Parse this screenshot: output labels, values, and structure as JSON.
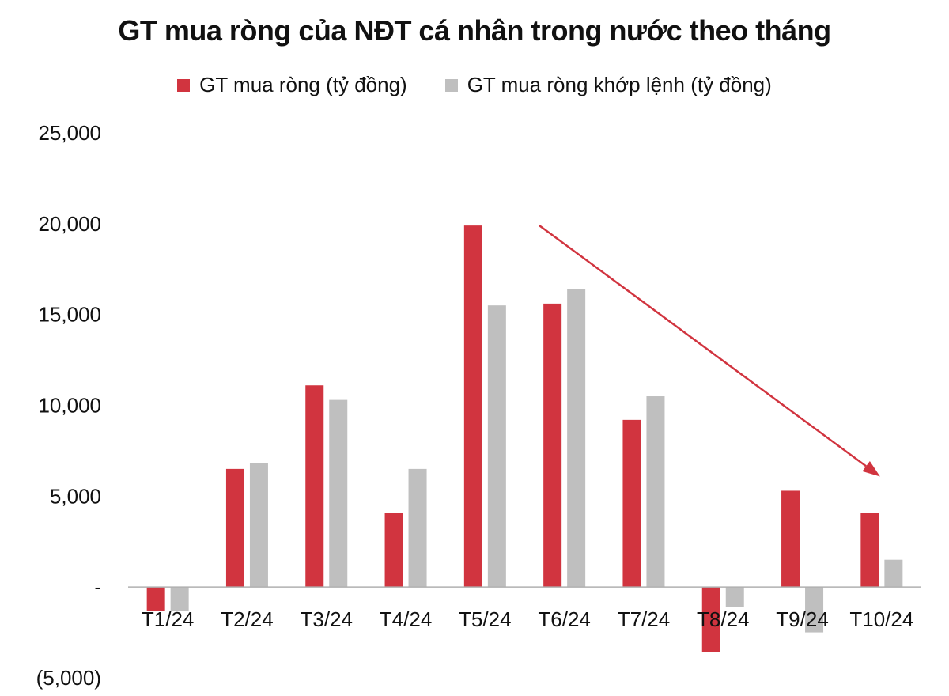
{
  "chart_data": {
    "type": "bar",
    "title": "GT mua ròng của NĐT cá nhân trong nước theo tháng",
    "categories": [
      "T1/24",
      "T2/24",
      "T3/24",
      "T4/24",
      "T5/24",
      "T6/24",
      "T7/24",
      "T8/24",
      "T9/24",
      "T10/24"
    ],
    "series": [
      {
        "name": "GT mua ròng (tỷ đồng)",
        "color": "#d1343f",
        "values": [
          -1300,
          6500,
          11100,
          4100,
          19900,
          15600,
          9200,
          -3600,
          5300,
          4100
        ]
      },
      {
        "name": "GT mua ròng khớp lệnh (tỷ đồng)",
        "color": "#bfbfbf",
        "values": [
          -1300,
          6800,
          10300,
          6500,
          15500,
          16400,
          10500,
          -1100,
          -2500,
          1500
        ]
      }
    ],
    "ylim": [
      -5000,
      25000
    ],
    "yticks": [
      -5000,
      0,
      5000,
      10000,
      15000,
      20000,
      25000
    ],
    "ytick_labels": [
      "(5,000)",
      "-",
      "5,000",
      "10,000",
      "15,000",
      "20,000",
      "25,000"
    ],
    "legend_position": "top-center",
    "grid": false,
    "annotation": {
      "type": "arrow",
      "color": "#d1343f",
      "from": [
        "T6/24",
        20000
      ],
      "to": [
        "T10/24",
        6300
      ]
    }
  }
}
